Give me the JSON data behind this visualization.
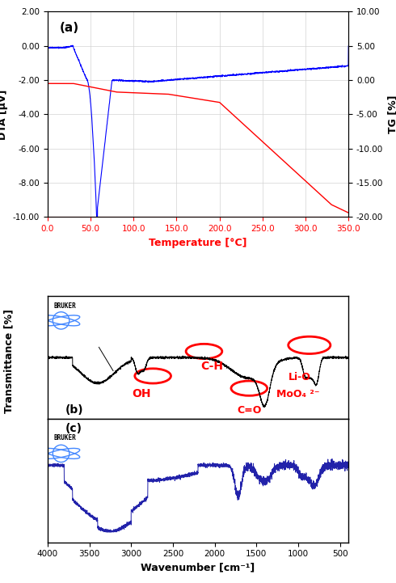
{
  "panel_a": {
    "label": "(a)",
    "xlabel": "Temperature [°C]",
    "xlabel_color": "red",
    "ylabel_left": "DTA [μV]",
    "ylabel_right": "TG [%]",
    "xlim": [
      0,
      350
    ],
    "ylim_left": [
      -10,
      2
    ],
    "ylim_right": [
      -20,
      10
    ],
    "yticks_left": [
      2.0,
      0.0,
      -2.0,
      -4.0,
      -6.0,
      -8.0,
      -10.0
    ],
    "yticks_right": [
      10.0,
      5.0,
      0.0,
      -5.0,
      -10.0,
      -15.0,
      -20.0
    ],
    "xticks": [
      0.0,
      50.0,
      100.0,
      150.0,
      200.0,
      250.0,
      300.0,
      350.0
    ],
    "grid": true,
    "dta_color": "blue",
    "tg_color": "red"
  },
  "panel_b": {
    "label": "(b)",
    "spectrum_color": "black",
    "annotations": [
      {
        "text": "OH",
        "color": "red",
        "x": 3400,
        "y_circle": 0.62,
        "fontsize": 11
      },
      {
        "text": "C-H",
        "color": "red",
        "x": 2950,
        "y_circle": 0.72,
        "fontsize": 11
      },
      {
        "text": "Li-O\nMoO₄ ²⁻",
        "color": "red",
        "x": 870,
        "y_circle": 0.72,
        "fontsize": 11
      }
    ],
    "bruker_text": "BRUKER"
  },
  "panel_c": {
    "label": "(c)",
    "spectrum_color": "#2222aa",
    "ylabel": "Transmittance [%]",
    "xlabel": "Wavenumber [cm⁻¹]",
    "xlim": [
      4000,
      400
    ],
    "bruker_text": "BRUKER"
  },
  "background_color": "white",
  "box_color": "black"
}
